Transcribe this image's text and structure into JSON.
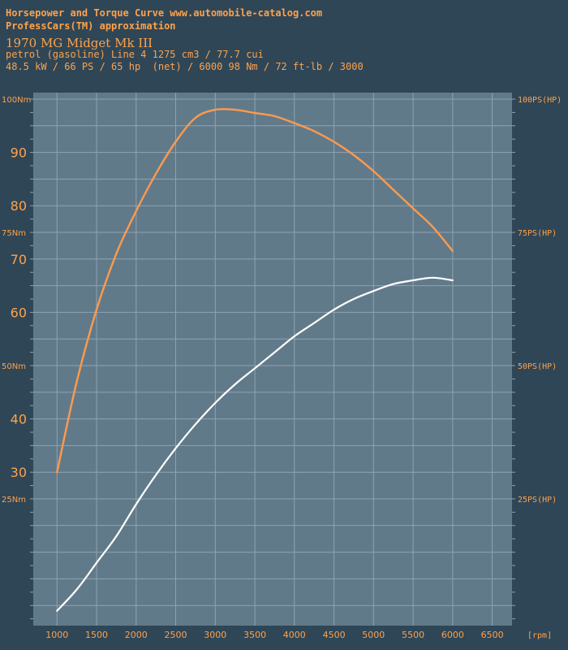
{
  "header": {
    "line1": "Horsepower and Torque Curve www.automobile-catalog.com",
    "line2": "ProfessCars(TM) approximation",
    "model": "1970 MG Midget Mk III",
    "engine": "petrol (gasoline) Line 4 1275 cm3 / 77.7 cui",
    "output": "48.5 kW / 66 PS / 65 hp  (net) / 6000 98 Nm / 72 ft-lb / 3000"
  },
  "colors": {
    "background": "#2f4657",
    "plot": "#617a8a",
    "grid": "#8fa3b1",
    "torque": "#ff9a4d",
    "power": "#ffffff",
    "label": "#ffa24a"
  },
  "chart_data": {
    "type": "line",
    "title": "",
    "xlabel": "[rpm]",
    "xlim": [
      700,
      6750
    ],
    "x_ticks": [
      1000,
      1500,
      2000,
      2500,
      3000,
      3500,
      4000,
      4500,
      5000,
      5500,
      6000,
      6500
    ],
    "x_tick_labels": [
      "1000",
      "1500",
      "2000",
      "2500",
      "3000",
      "3500",
      "4000",
      "4500",
      "5000",
      "5500",
      "6000",
      "6500"
    ],
    "y_left": {
      "unit": "Nm",
      "range": [
        0,
        100
      ],
      "big_ticks": [
        {
          "value": 90,
          "label": "90"
        },
        {
          "value": 80,
          "label": "80"
        },
        {
          "value": 70,
          "label": "70"
        },
        {
          "value": 60,
          "label": "60"
        },
        {
          "value": 40,
          "label": "40"
        },
        {
          "value": 30,
          "label": "30"
        }
      ],
      "small_ticks": [
        {
          "value": 100,
          "label": "100Nm"
        },
        {
          "value": 75,
          "label": "75Nm"
        },
        {
          "value": 50,
          "label": "50Nm"
        },
        {
          "value": 25,
          "label": "25Nm"
        }
      ]
    },
    "y_right": {
      "unit": "PS(HP)",
      "range": [
        0,
        100
      ],
      "ticks": [
        {
          "value": 100,
          "label": "100PS(HP)"
        },
        {
          "value": 75,
          "label": "75PS(HP)"
        },
        {
          "value": 50,
          "label": "50PS(HP)"
        },
        {
          "value": 25,
          "label": "25PS(HP)"
        }
      ]
    },
    "grid": true,
    "series": [
      {
        "axis": "left",
        "x": [
          1000,
          1250,
          1500,
          1750,
          2000,
          2250,
          2500,
          2750,
          3000,
          3250,
          3500,
          3750,
          4000,
          4250,
          4500,
          4750,
          5000,
          5250,
          5500,
          5750,
          6000
        ],
        "values": [
          30,
          47,
          60.5,
          71,
          79,
          86,
          92,
          96.5,
          98,
          98,
          97.4,
          96.8,
          95.5,
          94,
          92,
          89.5,
          86.5,
          83,
          79.5,
          76,
          71.5
        ]
      },
      {
        "axis": "right",
        "x": [
          1000,
          1250,
          1500,
          1750,
          2000,
          2250,
          2500,
          2750,
          3000,
          3250,
          3500,
          3750,
          4000,
          4250,
          4500,
          4750,
          5000,
          5250,
          5500,
          5750,
          6000
        ],
        "values": [
          4,
          8,
          13,
          18,
          24,
          29.5,
          34.5,
          39,
          43,
          46.5,
          49.5,
          52.5,
          55.5,
          58,
          60.5,
          62.5,
          64,
          65.3,
          66,
          66.5,
          66
        ]
      }
    ]
  }
}
